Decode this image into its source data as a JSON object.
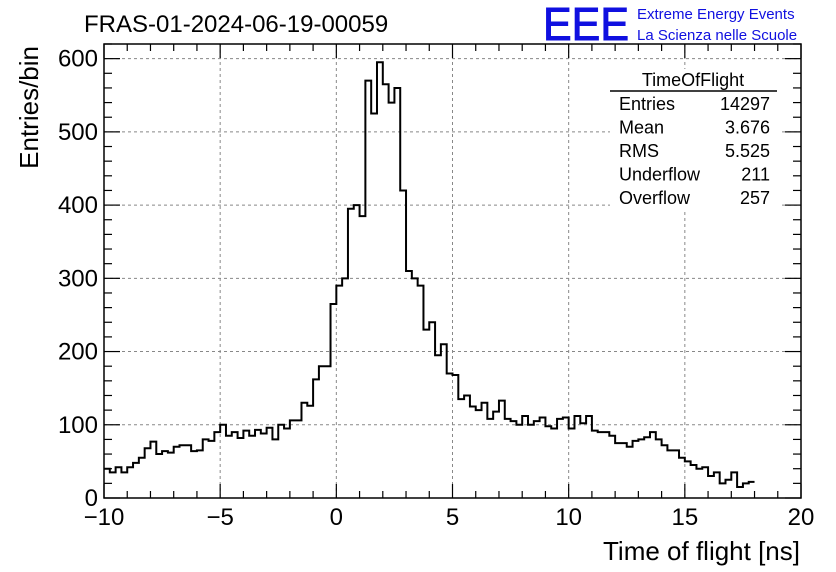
{
  "chart_data": {
    "type": "histogram",
    "title": "FRAS-01-2024-06-19-00059",
    "xlabel": "Time of flight [ns]",
    "ylabel": "Entries/bin",
    "xlim": [
      -10,
      20
    ],
    "ylim": [
      0,
      620
    ],
    "xticks": [
      -10,
      -5,
      0,
      5,
      10,
      15,
      20
    ],
    "xtick_labels": [
      "−10",
      "−5",
      "0",
      "5",
      "10",
      "15",
      "20"
    ],
    "yticks": [
      0,
      100,
      200,
      300,
      400,
      500,
      600
    ],
    "grid": true,
    "line_color": "#000000",
    "bin_width": 0.25,
    "x_start": -10,
    "values": [
      40,
      35,
      42,
      35,
      42,
      48,
      55,
      68,
      77,
      60,
      64,
      62,
      70,
      72,
      72,
      64,
      65,
      80,
      78,
      90,
      100,
      85,
      90,
      82,
      92,
      85,
      93,
      88,
      96,
      80,
      100,
      95,
      106,
      106,
      130,
      126,
      162,
      180,
      180,
      265,
      290,
      300,
      395,
      400,
      385,
      570,
      525,
      595,
      565,
      540,
      560,
      420,
      310,
      300,
      290,
      230,
      240,
      195,
      210,
      170,
      168,
      135,
      140,
      125,
      120,
      130,
      108,
      118,
      133,
      108,
      105,
      100,
      112,
      100,
      105,
      110,
      98,
      95,
      108,
      110,
      95,
      112,
      102,
      112,
      92,
      90,
      90,
      85,
      75,
      75,
      70,
      78,
      80,
      83,
      90,
      80,
      72,
      65,
      65,
      55,
      50,
      45,
      40,
      42,
      30,
      35,
      20,
      25,
      35,
      15,
      20,
      22
    ],
    "stats_box": {
      "title": "TimeOfFlight",
      "rows": [
        {
          "label": "Entries",
          "value": "14297"
        },
        {
          "label": "Mean",
          "value": "3.676"
        },
        {
          "label": "RMS",
          "value": "5.525"
        },
        {
          "label": "Underflow",
          "value": "211"
        },
        {
          "label": "Overflow",
          "value": "257"
        }
      ]
    }
  },
  "logo": {
    "text": "EEE",
    "line1": "Extreme Energy Events",
    "line2": "La Scienza nelle Scuole",
    "color": "#1010e0"
  }
}
